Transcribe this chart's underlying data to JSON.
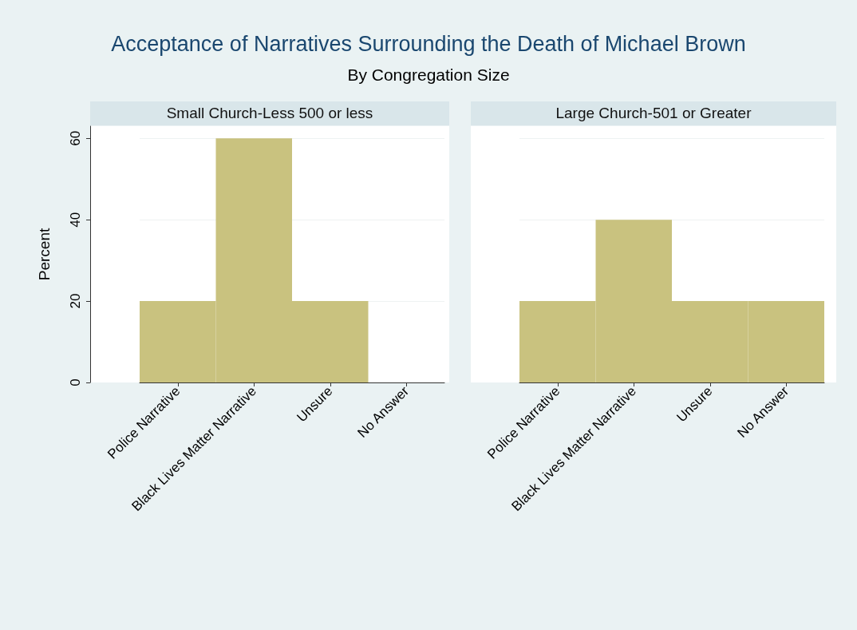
{
  "chart_data": [
    {
      "type": "bar",
      "title": "Acceptance of Narratives Surrounding the Death of Michael Brown",
      "subtitle": "By Congregation Size",
      "annotations": [
        "Small Church-Less 500 or less"
      ],
      "ylabel": "Percent",
      "categories": [
        "Police Narrative",
        "Black Lives Matter Narrative",
        "Unsure",
        "No Answer"
      ],
      "values": [
        20,
        60,
        20,
        0
      ],
      "color": "#c9c27f",
      "ylim": [
        0,
        63
      ],
      "yticks": [
        0,
        20,
        40,
        60
      ],
      "grid": "y"
    },
    {
      "type": "bar",
      "annotations": [
        "Large Church-501 or Greater"
      ],
      "categories": [
        "Police Narrative",
        "Black Lives Matter Narrative",
        "Unsure",
        "No Answer"
      ],
      "values": [
        20,
        40,
        20,
        20
      ],
      "color": "#c9c27f",
      "ylim": [
        0,
        63
      ],
      "yticks": [
        0,
        20,
        40,
        60
      ],
      "grid": "y",
      "tick_labels": "x"
    }
  ]
}
